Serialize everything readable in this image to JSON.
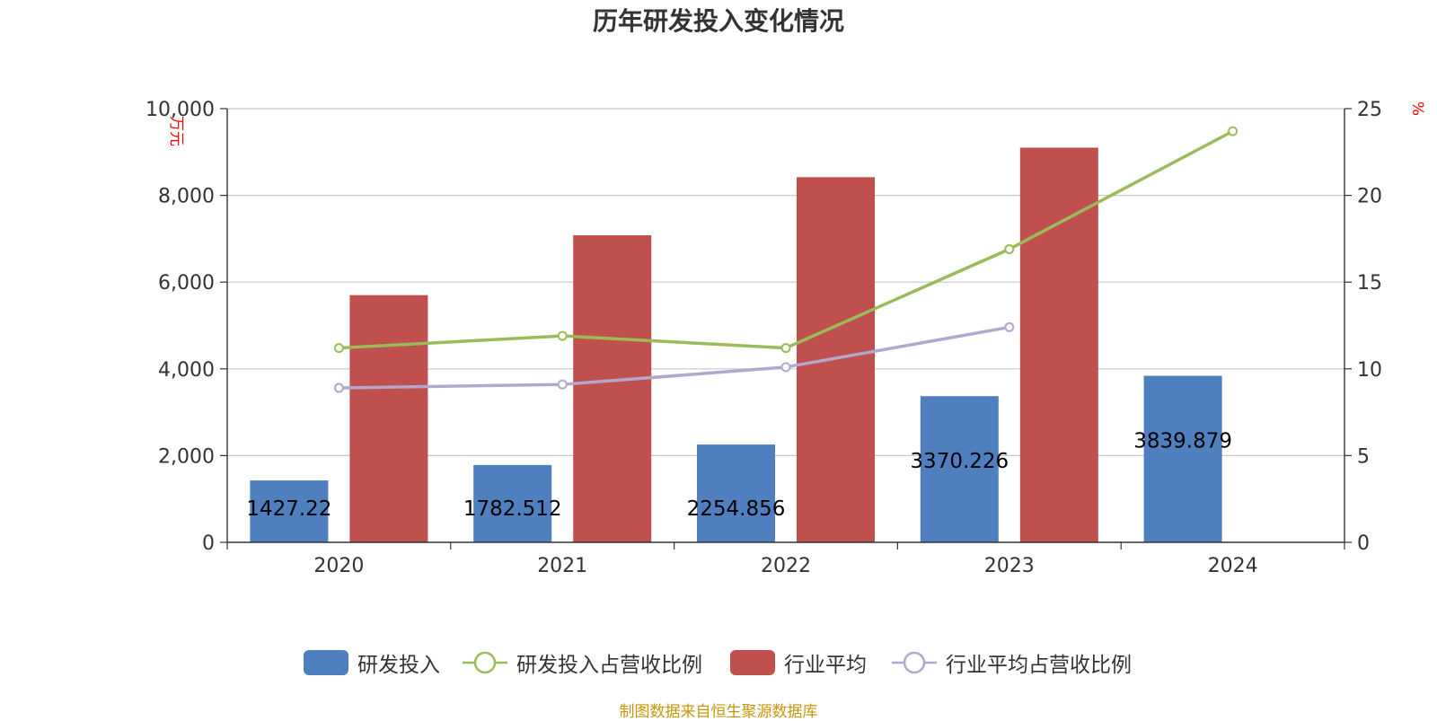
{
  "title": "历年研发投入变化情况",
  "source": "制图数据来自恒生聚源数据库",
  "legend": [
    {
      "label": "研发投入",
      "kind": "bar",
      "color": "#4f7fbf"
    },
    {
      "label": "研发投入占营收比例",
      "kind": "line",
      "color": "#9bbb59"
    },
    {
      "label": "行业平均",
      "kind": "bar",
      "color": "#c0504d"
    },
    {
      "label": "行业平均占营收比例",
      "kind": "line",
      "color": "#b3a6cf"
    }
  ],
  "chart_data": {
    "type": "bar",
    "categories": [
      "2020",
      "2021",
      "2022",
      "2023",
      "2024"
    ],
    "y_left": {
      "label": "万元",
      "lim": [
        0,
        10000
      ],
      "ticks": [
        "0",
        "2,000",
        "4,000",
        "6,000",
        "8,000",
        "10,000"
      ],
      "tick_values": [
        0,
        2000,
        4000,
        6000,
        8000,
        10000
      ],
      "color": "#ff0000"
    },
    "y_right": {
      "label": "%",
      "lim": [
        0,
        25
      ],
      "ticks": [
        "0",
        "5",
        "10",
        "15",
        "20",
        "25"
      ],
      "tick_values": [
        0,
        5,
        10,
        15,
        20,
        25
      ],
      "color": "#ff0000"
    },
    "grid": true,
    "legend_position": "bottom",
    "series": [
      {
        "name": "研发投入",
        "type": "bar",
        "axis": "left",
        "color": "#4f7fbf",
        "values": [
          1427.22,
          1782.512,
          2254.856,
          3370.226,
          3839.879
        ],
        "labels": [
          "1427.22",
          "1782.512",
          "2254.856",
          "3370.226",
          "3839.879"
        ]
      },
      {
        "name": "行业平均",
        "type": "bar",
        "axis": "left",
        "color": "#c0504d",
        "values": [
          5700,
          7080,
          8420,
          9100,
          null
        ]
      },
      {
        "name": "研发投入占营收比例",
        "type": "line",
        "axis": "right",
        "color": "#9bbb59",
        "values": [
          11.2,
          11.9,
          11.2,
          16.9,
          23.7
        ]
      },
      {
        "name": "行业平均占营收比例",
        "type": "line",
        "axis": "right",
        "color": "#b3a6cf",
        "values": [
          8.9,
          9.1,
          10.1,
          12.4,
          null
        ]
      }
    ]
  }
}
